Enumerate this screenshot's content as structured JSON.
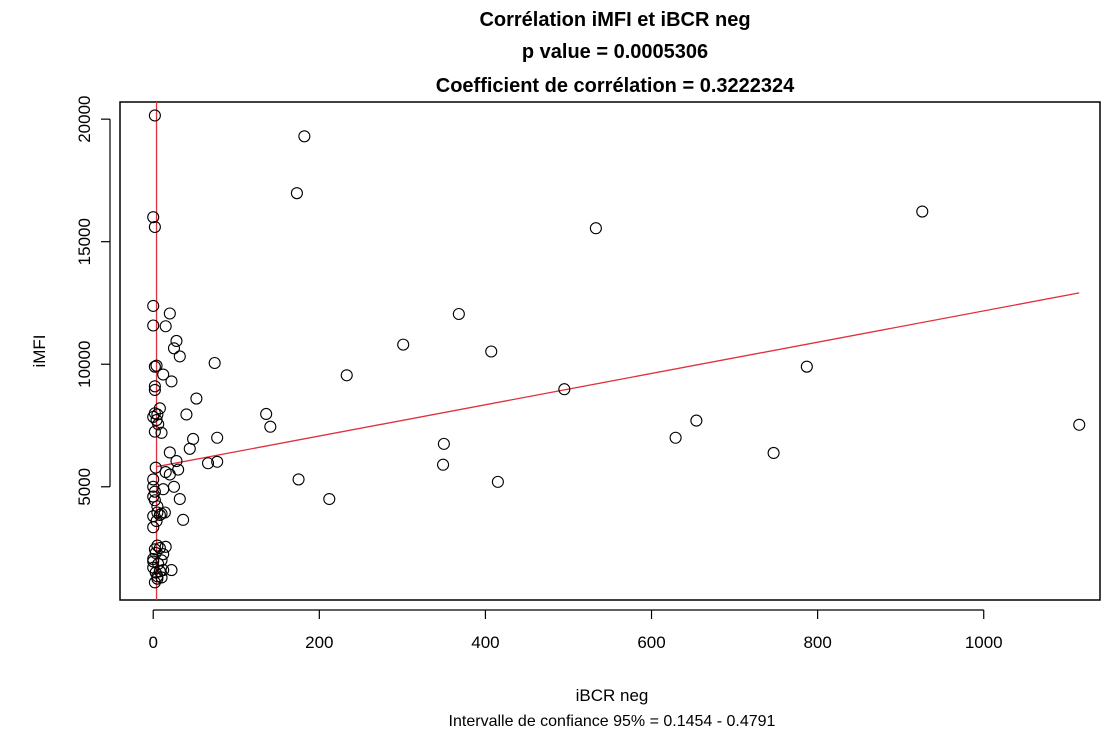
{
  "chart_data": {
    "type": "scatter",
    "title": [
      "Corrélation iMFI et iBCR neg",
      "p value = 0.0005306",
      "Coefficient de corrélation = 0.3222324"
    ],
    "xlabel": "iBCR neg",
    "ylabel": "iMFI",
    "sub": "Intervalle de confiance 95% =  0.1454 - 0.4791",
    "xlim": [
      -40,
      1140
    ],
    "ylim": [
      380,
      20700
    ],
    "xticks": [
      0,
      200,
      400,
      600,
      800,
      1000
    ],
    "yticks": [
      5000,
      10000,
      15000,
      20000
    ],
    "xtick_labels": [
      "0",
      "200",
      "400",
      "600",
      "800",
      "1000"
    ],
    "ytick_labels": [
      "5000",
      "10000",
      "15000",
      "20000"
    ],
    "colors": {
      "points": "#000000",
      "lines": "#e0303c"
    },
    "vline_x": 4,
    "regression": {
      "x": [
        4,
        1115
      ],
      "y": [
        5820,
        12910
      ]
    },
    "points": [
      [
        2,
        20150
      ],
      [
        0,
        16000
      ],
      [
        2,
        15600
      ],
      [
        0,
        12380
      ],
      [
        0,
        11580
      ],
      [
        2,
        9900
      ],
      [
        4,
        9940
      ],
      [
        2,
        9100
      ],
      [
        2,
        8950
      ],
      [
        2,
        8000
      ],
      [
        0,
        7850
      ],
      [
        4,
        7720
      ],
      [
        6,
        7550
      ],
      [
        2,
        7250
      ],
      [
        5,
        7950
      ],
      [
        8,
        8200
      ],
      [
        10,
        7200
      ],
      [
        12,
        9580
      ],
      [
        15,
        11550
      ],
      [
        20,
        12070
      ],
      [
        25,
        10650
      ],
      [
        28,
        10950
      ],
      [
        32,
        10320
      ],
      [
        22,
        9300
      ],
      [
        3,
        5780
      ],
      [
        0,
        5300
      ],
      [
        0,
        5000
      ],
      [
        2,
        4800
      ],
      [
        0,
        4600
      ],
      [
        2,
        4450
      ],
      [
        5,
        4200
      ],
      [
        5,
        3950
      ],
      [
        0,
        3800
      ],
      [
        8,
        3850
      ],
      [
        4,
        3600
      ],
      [
        0,
        3350
      ],
      [
        10,
        3900
      ],
      [
        14,
        3950
      ],
      [
        12,
        4900
      ],
      [
        15,
        5600
      ],
      [
        20,
        5500
      ],
      [
        25,
        5000
      ],
      [
        30,
        5700
      ],
      [
        32,
        4500
      ],
      [
        36,
        3650
      ],
      [
        28,
        6050
      ],
      [
        20,
        6400
      ],
      [
        40,
        7950
      ],
      [
        44,
        6550
      ],
      [
        48,
        6950
      ],
      [
        52,
        8600
      ],
      [
        66,
        5960
      ],
      [
        74,
        10050
      ],
      [
        77,
        6020
      ],
      [
        77,
        7000
      ],
      [
        2,
        2450
      ],
      [
        5,
        2600
      ],
      [
        0,
        2050
      ],
      [
        3,
        2300
      ],
      [
        8,
        2500
      ],
      [
        10,
        2000
      ],
      [
        12,
        2250
      ],
      [
        15,
        2550
      ],
      [
        0,
        1700
      ],
      [
        3,
        1500
      ],
      [
        5,
        1350
      ],
      [
        8,
        1550
      ],
      [
        2,
        1100
      ],
      [
        5,
        1250
      ],
      [
        10,
        1300
      ],
      [
        12,
        1600
      ],
      [
        22,
        1600
      ],
      [
        0,
        1950
      ],
      [
        6,
        1850
      ],
      [
        136,
        7970
      ],
      [
        141,
        7450
      ],
      [
        173,
        16980
      ],
      [
        175,
        5300
      ],
      [
        182,
        19300
      ],
      [
        212,
        4500
      ],
      [
        233,
        9550
      ],
      [
        301,
        10800
      ],
      [
        349,
        5900
      ],
      [
        350,
        6750
      ],
      [
        368,
        12050
      ],
      [
        407,
        10520
      ],
      [
        415,
        5200
      ],
      [
        495,
        8980
      ],
      [
        533,
        15550
      ],
      [
        629,
        7000
      ],
      [
        654,
        7700
      ],
      [
        747,
        6380
      ],
      [
        787,
        9900
      ],
      [
        926,
        16230
      ],
      [
        1115,
        7530
      ]
    ]
  }
}
